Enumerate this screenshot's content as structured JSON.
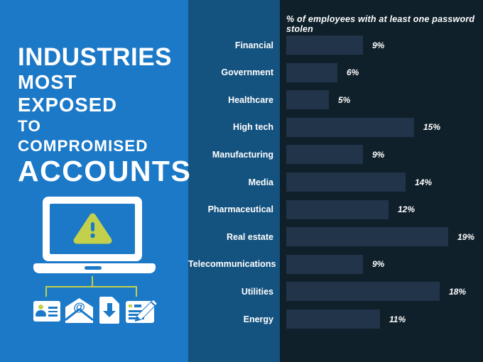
{
  "colors": {
    "panel_blue": "#1b79c8",
    "strip_blue": "#14527f",
    "chart_bg": "#0f202b",
    "bar_fill": "#213449",
    "accent_green": "#c3d04b",
    "text_white": "#ffffff"
  },
  "left_panel": {
    "title_lines": [
      "INDUSTRIES",
      "MOST EXPOSED",
      "TO COMPROMISED",
      "ACCOUNTS"
    ],
    "email_at_glyph": "@",
    "icon_names": [
      "laptop-warning-icon",
      "id-card-icon",
      "email-at-icon",
      "download-document-icon",
      "edit-document-icon"
    ]
  },
  "chart": {
    "header": "% of employees with at least one password stolen"
  },
  "chart_data": {
    "type": "bar",
    "orientation": "horizontal",
    "title": "% of employees with at least one password stolen",
    "categories": [
      "Financial",
      "Government",
      "Healthcare",
      "High tech",
      "Manufacturing",
      "Media",
      "Pharmaceutical",
      "Real estate",
      "Telecommunications",
      "Utilities",
      "Energy"
    ],
    "values": [
      9,
      6,
      5,
      15,
      9,
      14,
      12,
      19,
      9,
      18,
      11
    ],
    "value_labels": [
      "9%",
      "6%",
      "5%",
      "15%",
      "9%",
      "14%",
      "12%",
      "19%",
      "9%",
      "18%",
      "11%"
    ],
    "unit": "percent",
    "xlim": [
      0,
      20
    ],
    "grid": false,
    "legend": false
  }
}
